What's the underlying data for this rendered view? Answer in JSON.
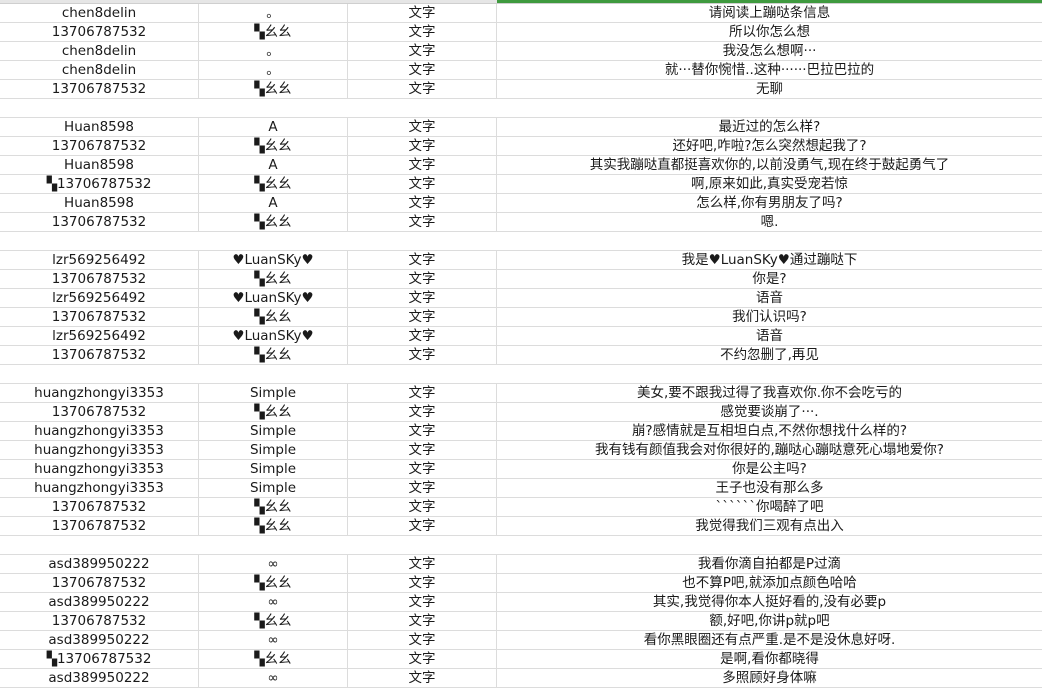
{
  "colors": {
    "grid": "#dcdcdc",
    "selection": "#3f9a3f"
  },
  "rows": [
    [
      "chen8delin",
      "。",
      "文字",
      "请阅读上蹦哒条信息"
    ],
    [
      "13706787532",
      "▚幺幺",
      "文字",
      "所以你怎么想"
    ],
    [
      "chen8delin",
      "。",
      "文字",
      "我没怎么想啊···"
    ],
    [
      "chen8delin",
      "。",
      "文字",
      "就···替你惋惜..这种······巴拉巴拉的"
    ],
    [
      "13706787532",
      "▚幺幺",
      "文字",
      "无聊"
    ],
    [
      "",
      "",
      "",
      ""
    ],
    [
      "Huan8598",
      "A",
      "文字",
      "最近过的怎么样?"
    ],
    [
      "13706787532",
      "▚幺幺",
      "文字",
      "还好吧,咋啦?怎么突然想起我了?"
    ],
    [
      "Huan8598",
      "A",
      "文字",
      "其实我蹦哒直都挺喜欢你的,以前没勇气,现在终于鼓起勇气了"
    ],
    [
      "▚13706787532",
      "▚幺幺",
      "文字",
      "啊,原来如此,真实受宠若惊"
    ],
    [
      "Huan8598",
      "A",
      "文字",
      "怎么样,你有男朋友了吗?"
    ],
    [
      "13706787532",
      "▚幺幺",
      "文字",
      "嗯."
    ],
    [
      "",
      "",
      "",
      ""
    ],
    [
      "lzr569256492",
      "♥LuanSKy♥",
      "文字",
      "我是♥LuanSKy♥通过蹦哒下"
    ],
    [
      "13706787532",
      "▚幺幺",
      "文字",
      "你是?"
    ],
    [
      "lzr569256492",
      "♥LuanSKy♥",
      "文字",
      "语音"
    ],
    [
      "13706787532",
      "▚幺幺",
      "文字",
      "我们认识吗?"
    ],
    [
      "lzr569256492",
      "♥LuanSKy♥",
      "文字",
      "语音"
    ],
    [
      "13706787532",
      "▚幺幺",
      "文字",
      "不约忽删了,再见"
    ],
    [
      "",
      "",
      "",
      ""
    ],
    [
      "huangzhongyi3353",
      "Simple",
      "文字",
      "美女,要不跟我过得了我喜欢你.你不会吃亏的"
    ],
    [
      "13706787532",
      "▚幺幺",
      "文字",
      "感觉要谈崩了···."
    ],
    [
      "huangzhongyi3353",
      "Simple",
      "文字",
      "崩?感情就是互相坦白点,不然你想找什么样的?"
    ],
    [
      "huangzhongyi3353",
      "Simple",
      "文字",
      "我有钱有颜值我会对你很好的,蹦哒心蹦哒意死心塌地爱你?"
    ],
    [
      "huangzhongyi3353",
      "Simple",
      "文字",
      "你是公主吗?"
    ],
    [
      "huangzhongyi3353",
      "Simple",
      "文字",
      "王子也没有那么多"
    ],
    [
      "13706787532",
      "▚幺幺",
      "文字",
      "ˋˋˋˋˋˋ你喝醉了吧"
    ],
    [
      "13706787532",
      "▚幺幺",
      "文字",
      "我觉得我们三观有点出入"
    ],
    [
      "",
      "",
      "",
      ""
    ],
    [
      "asd389950222",
      "∞",
      "文字",
      "我看你滴自拍都是P过滴"
    ],
    [
      "13706787532",
      "▚幺幺",
      "文字",
      "也不算P吧,就添加点颜色哈哈"
    ],
    [
      "asd389950222",
      "∞",
      "文字",
      "其实,我觉得你本人挺好看的,没有必要p"
    ],
    [
      "13706787532",
      "▚幺幺",
      "文字",
      "额,好吧,你讲p就p吧"
    ],
    [
      "asd389950222",
      "∞",
      "文字",
      "看你黑眼圈还有点严重.是不是没休息好呀."
    ],
    [
      "▚13706787532",
      "▚幺幺",
      "文字",
      "是啊,看你都晓得"
    ],
    [
      "asd389950222",
      "∞",
      "文字",
      "多照顾好身体嘛"
    ]
  ]
}
